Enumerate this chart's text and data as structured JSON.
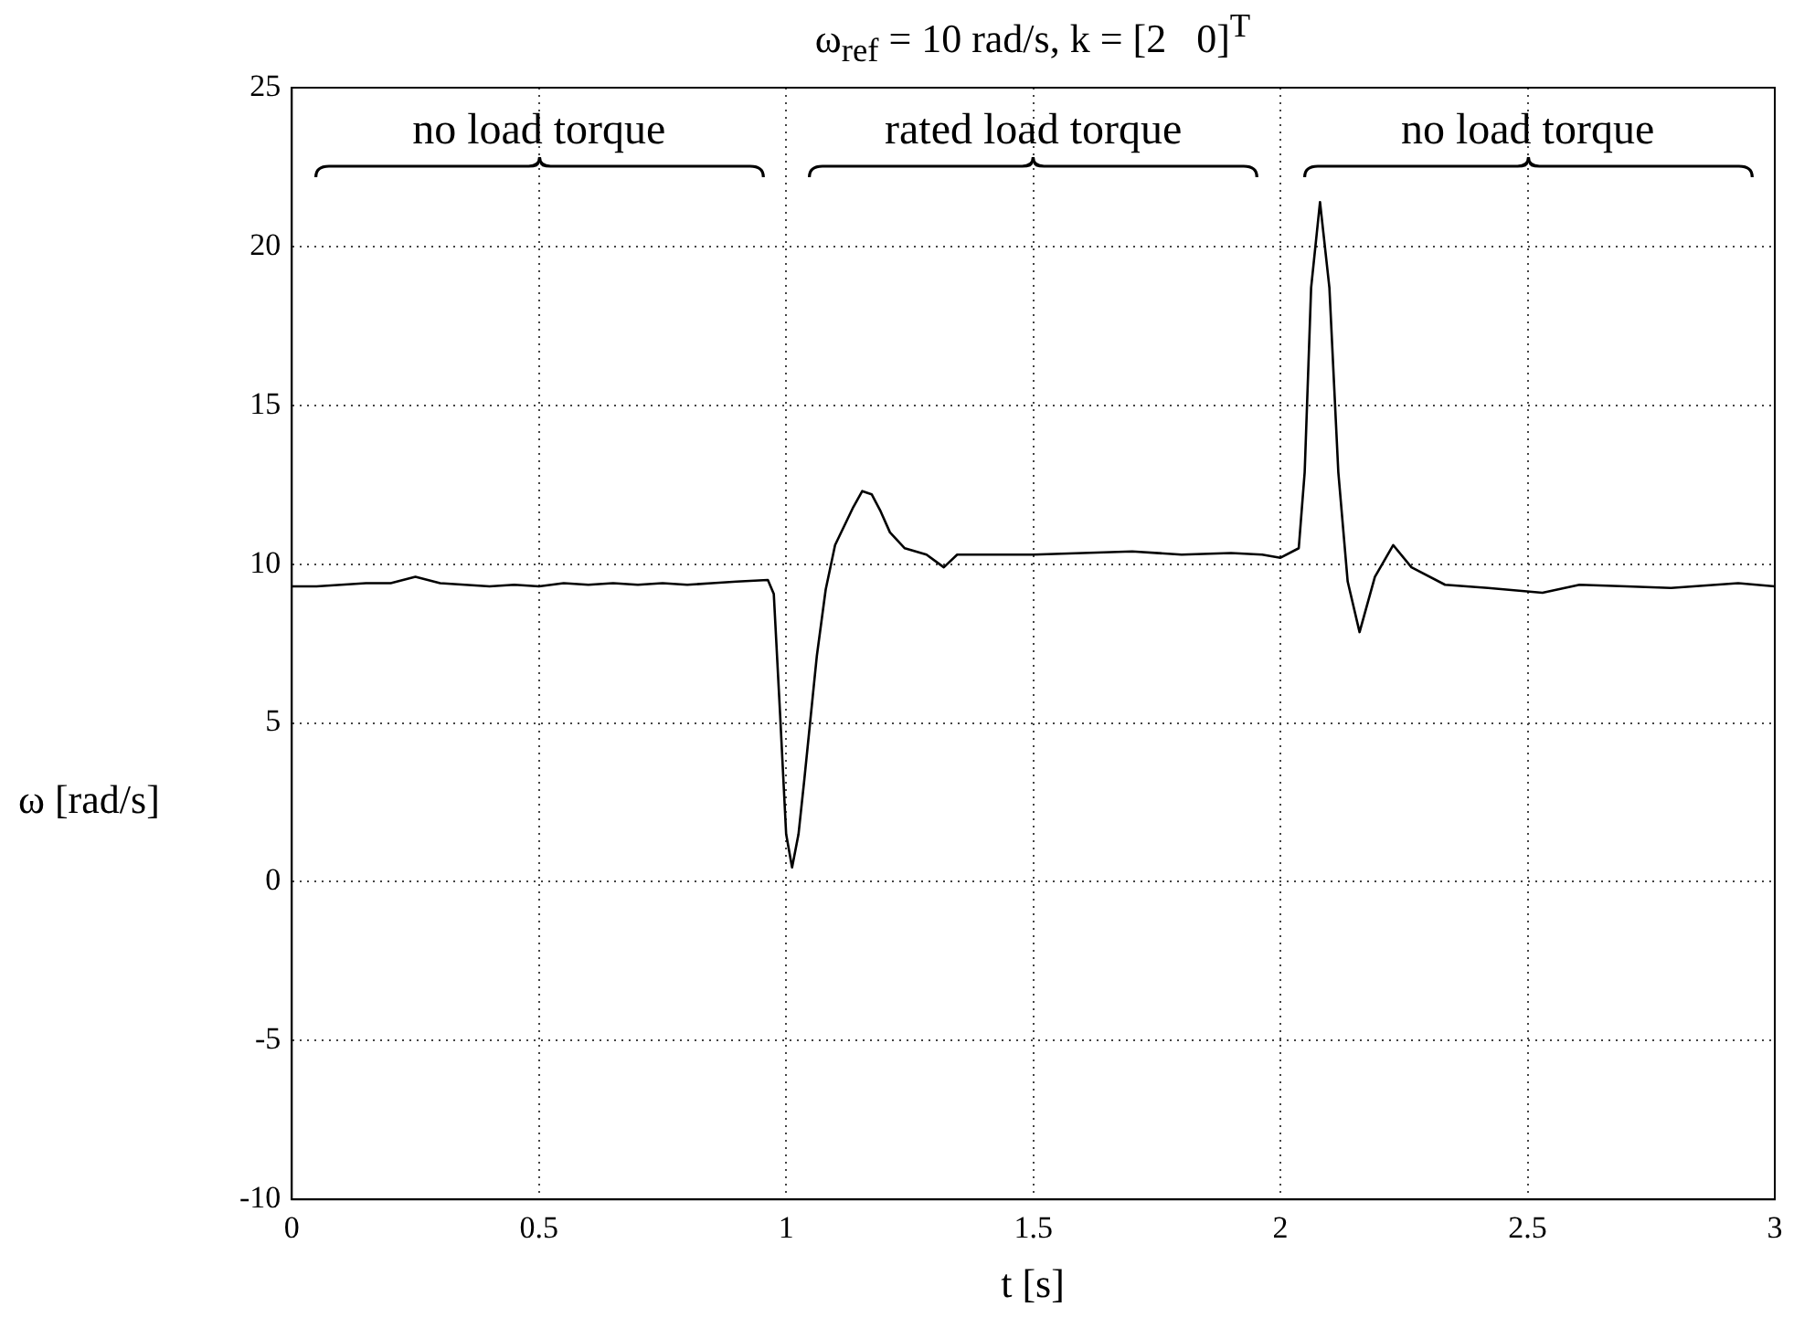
{
  "chart_data": {
    "type": "line",
    "title": "ω$_{ref}$ = 10 rad/s, k = [2   0]$^{T}$",
    "xlabel": "t [s]",
    "ylabel": "ω [rad/s]",
    "x": [
      0,
      0.05,
      0.1,
      0.15,
      0.2,
      0.25,
      0.3,
      0.35,
      0.4,
      0.45,
      0.5,
      0.55,
      0.6,
      0.65,
      0.7,
      0.75,
      0.8,
      0.85,
      0.9,
      0.963,
      0.975,
      0.988,
      1.0,
      1.012,
      1.025,
      1.037,
      1.062,
      1.08,
      1.099,
      1.136,
      1.154,
      1.173,
      1.19,
      1.21,
      1.24,
      1.284,
      1.319,
      1.346,
      1.4,
      1.5,
      1.6,
      1.7,
      1.8,
      1.9,
      1.963,
      2.0,
      2.037,
      2.049,
      2.062,
      2.08,
      2.099,
      2.117,
      2.136,
      2.16,
      2.191,
      2.228,
      2.265,
      2.333,
      2.42,
      2.53,
      2.605,
      2.7,
      2.79,
      2.926,
      3.0
    ],
    "series": [
      {
        "color": "#000000",
        "values": [
          9.3,
          9.3,
          9.35,
          9.4,
          9.4,
          9.6,
          9.4,
          9.35,
          9.3,
          9.35,
          9.3,
          9.4,
          9.35,
          9.4,
          9.35,
          9.4,
          9.35,
          9.4,
          9.45,
          9.5,
          9.06,
          5.2,
          1.5,
          0.45,
          1.5,
          3.25,
          7.1,
          9.2,
          10.6,
          11.8,
          12.3,
          12.2,
          11.7,
          11.0,
          10.5,
          10.3,
          9.9,
          10.3,
          10.3,
          10.3,
          10.35,
          10.4,
          10.3,
          10.35,
          10.3,
          10.2,
          10.5,
          12.9,
          18.7,
          21.4,
          18.7,
          12.9,
          9.45,
          7.86,
          9.6,
          10.6,
          9.9,
          9.35,
          9.25,
          9.1,
          9.35,
          9.3,
          9.25,
          9.4,
          9.3
        ]
      }
    ],
    "xlim": [
      0,
      3
    ],
    "xticks": [
      0,
      0.5,
      1,
      1.5,
      2,
      2.5,
      3
    ],
    "ylim": [
      -10,
      25
    ],
    "yticks": [
      -10,
      -5,
      0,
      5,
      10,
      15,
      20,
      25
    ],
    "grid": true,
    "marker": "none",
    "line_style": "solid",
    "annotations": [
      "no load torque",
      "rated load torque",
      "no load torque"
    ]
  }
}
